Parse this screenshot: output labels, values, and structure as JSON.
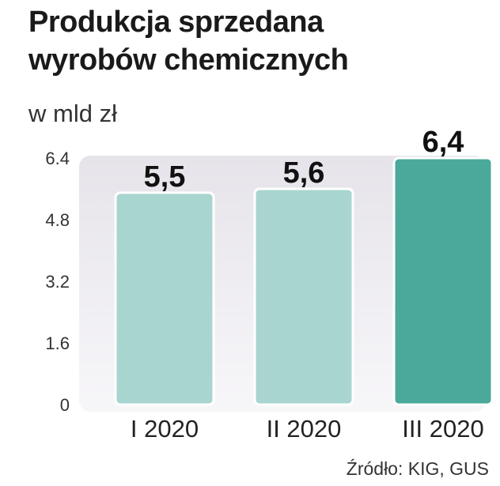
{
  "chart_data": {
    "type": "bar",
    "title_line1": "Produkcja sprzedana",
    "title_line2": "wyrobów chemicznych",
    "subtitle": "w mld zł",
    "categories": [
      "I 2020",
      "II 2020",
      "III 2020"
    ],
    "values": [
      5.5,
      5.6,
      6.4
    ],
    "data_labels": [
      "5,5",
      "5,6",
      "6,4"
    ],
    "yticks": [
      "0",
      "1.6",
      "3.2",
      "4.8",
      "6.4"
    ],
    "ylim": [
      0,
      6.4
    ],
    "colors": [
      "#a8d5d0",
      "#a8d5d0",
      "#4aa99a"
    ],
    "grid": false,
    "source": "Źródło: KIG, GUS"
  }
}
